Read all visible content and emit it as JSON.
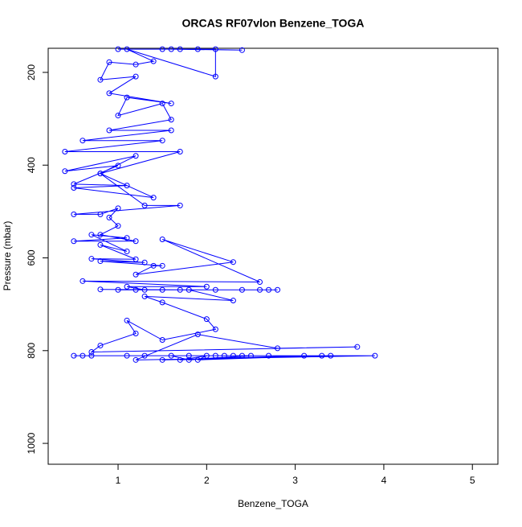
{
  "chart_data": {
    "type": "line",
    "title": "ORCAS RF07vlon Benzene_TOGA",
    "x_label": "Benzene_TOGA",
    "y_label": "Pressure (mbar)",
    "color": "#0000ff",
    "markers": true,
    "xlim": [
      0.211,
      5.288
    ],
    "xticks": [
      1,
      2,
      3,
      4,
      5
    ],
    "ylim": [
      1045,
      148
    ],
    "yticks": [
      200,
      400,
      600,
      800,
      1000
    ],
    "x": [
      1.0,
      1.6,
      2.4,
      1.9,
      1.5,
      1.7,
      2.1,
      2.1,
      1.1,
      1.4,
      1.2,
      0.9,
      0.8,
      1.2,
      0.9,
      1.6,
      1.1,
      1.0,
      1.5,
      1.6,
      0.9,
      1.6,
      0.6,
      1.5,
      0.4,
      1.7,
      0.8,
      1.2,
      0.4,
      1.0,
      0.5,
      1.1,
      0.5,
      1.4,
      0.8,
      1.3,
      1.7,
      0.5,
      0.8,
      1.0,
      0.9,
      1.0,
      0.8,
      1.2,
      0.5,
      1.1,
      0.7,
      1.1,
      0.8,
      1.2,
      0.7,
      1.3,
      0.8,
      1.5,
      1.4,
      1.2,
      2.3,
      1.5,
      2.6,
      0.6,
      2.0,
      1.1,
      1.3,
      2.8,
      1.5,
      2.7,
      1.7,
      0.8,
      2.1,
      1.2,
      2.4,
      1.0,
      2.6,
      1.8,
      2.3,
      1.3,
      1.5,
      2.0,
      2.1,
      1.5,
      1.1,
      1.2,
      0.8,
      0.7,
      3.7,
      2.8,
      1.9,
      1.2,
      3.9,
      1.1,
      3.4,
      1.5,
      3.1,
      0.5,
      2.2,
      0.6,
      1.6,
      1.8,
      2.5,
      1.7,
      2.0,
      1.9,
      3.3,
      1.3,
      2.4,
      1.8,
      2.7,
      2.1,
      2.3,
      0.7
    ],
    "y": [
      150,
      150,
      152,
      150,
      150,
      150,
      150,
      209,
      150,
      176,
      183,
      178,
      216,
      209,
      245,
      267,
      254,
      293,
      267,
      302,
      325,
      325,
      347,
      347,
      371,
      371,
      418,
      380,
      413,
      401,
      441,
      444,
      449,
      470,
      418,
      487,
      487,
      506,
      506,
      493,
      513,
      531,
      550,
      564,
      564,
      557,
      550,
      586,
      572,
      603,
      602,
      610,
      607,
      617,
      617,
      636,
      609,
      560,
      652,
      650,
      662,
      662,
      669,
      669,
      669,
      669,
      669,
      668,
      669,
      669,
      669,
      669,
      669,
      669,
      692,
      683,
      696,
      732,
      754,
      777,
      735,
      763,
      789,
      803,
      792,
      795,
      765,
      820,
      811,
      811,
      811,
      820,
      811,
      811,
      811,
      811,
      811,
      820,
      811,
      820,
      811,
      820,
      811,
      811,
      811,
      811,
      811,
      811,
      811,
      811
    ]
  }
}
